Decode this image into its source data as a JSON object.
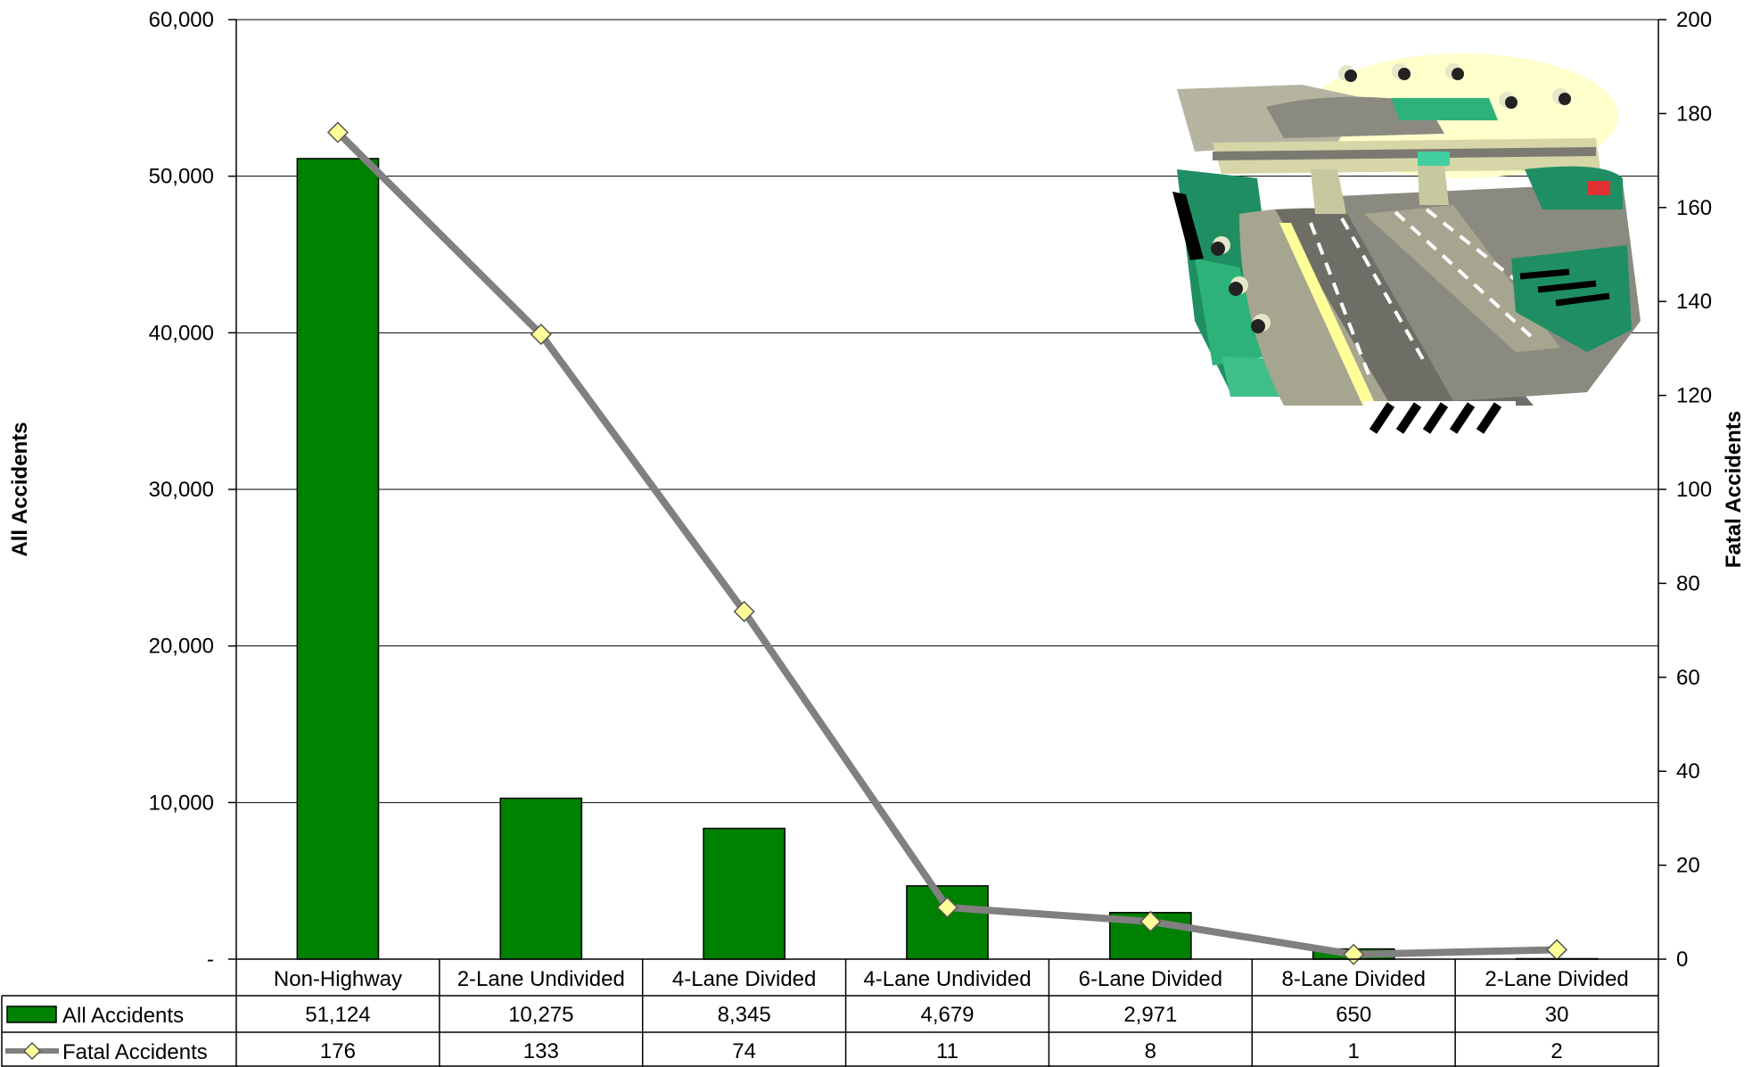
{
  "chart_data": {
    "type": "bar",
    "categories": [
      "Non-Highway",
      "2-Lane Undivided",
      "4-Lane Divided",
      "4-Lane Undivided",
      "6-Lane Divided",
      "8-Lane Divided",
      "2-Lane Divided"
    ],
    "series": [
      {
        "name": "All Accidents",
        "type": "bar",
        "axis": "left",
        "color": "#008000",
        "values": [
          51124,
          10275,
          8345,
          4679,
          2971,
          650,
          30
        ],
        "labels": [
          "51,124",
          "10,275",
          "8,345",
          "4,679",
          "2,971",
          "650",
          "30"
        ]
      },
      {
        "name": "Fatal Accidents",
        "type": "line",
        "axis": "right",
        "color": "#808080",
        "marker_color": "#ffff99",
        "values": [
          176,
          133,
          74,
          11,
          8,
          1,
          2
        ],
        "labels": [
          "176",
          "133",
          "74",
          "11",
          "8",
          "1",
          "2"
        ]
      }
    ],
    "ylabel": "All Accidents",
    "y2label": "Fatal Accidents",
    "ylim": [
      0,
      60000
    ],
    "y2lim": [
      0,
      200
    ],
    "yticks": [
      "-",
      "10,000",
      "20,000",
      "30,000",
      "40,000",
      "50,000",
      "60,000"
    ],
    "y2ticks": [
      "0",
      "20",
      "40",
      "60",
      "80",
      "100",
      "120",
      "140",
      "160",
      "180",
      "200"
    ],
    "grid": true,
    "legend": "data-table-bottom",
    "illustration": "highway-interchange-clipart"
  }
}
